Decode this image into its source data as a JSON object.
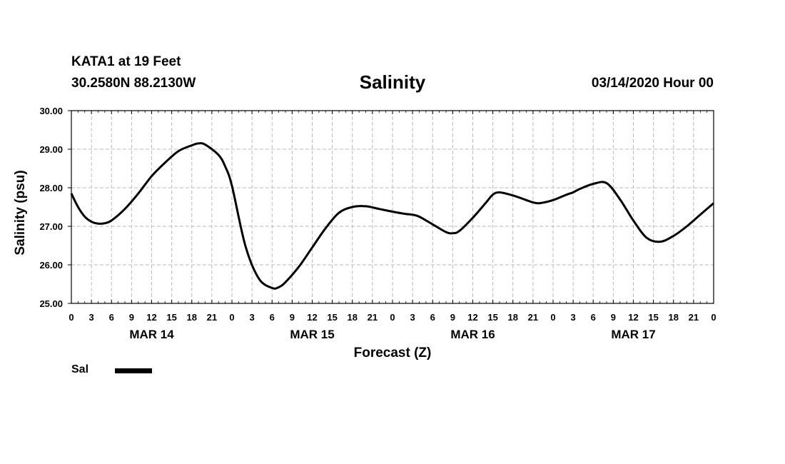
{
  "header": {
    "station": "KATA1 at 19 Feet",
    "coords": "30.2580N 88.2130W",
    "title": "Salinity",
    "timestamp": "03/14/2020 Hour 00"
  },
  "legend": {
    "label": "Sal"
  },
  "chart_data": {
    "type": "line",
    "title": "Salinity",
    "xlabel": "Forecast (Z)",
    "ylabel": "Salinity (psu)",
    "ylim": [
      25.0,
      30.0
    ],
    "xlim": [
      0,
      96
    ],
    "grid": true,
    "y_ticks": [
      25.0,
      26.0,
      27.0,
      28.0,
      29.0,
      30.0
    ],
    "y_tick_labels": [
      "25.00",
      "26.00",
      "27.00",
      "28.00",
      "29.00",
      "30.00"
    ],
    "x_ticks": [
      0,
      3,
      6,
      9,
      12,
      15,
      18,
      21,
      24,
      27,
      30,
      33,
      36,
      39,
      42,
      45,
      48,
      51,
      54,
      57,
      60,
      63,
      66,
      69,
      72,
      75,
      78,
      81,
      84,
      87,
      90,
      93,
      96
    ],
    "x_tick_labels": [
      "0",
      "3",
      "6",
      "9",
      "12",
      "15",
      "18",
      "21",
      "0",
      "3",
      "6",
      "9",
      "12",
      "15",
      "18",
      "21",
      "0",
      "3",
      "6",
      "9",
      "12",
      "15",
      "18",
      "21",
      "0",
      "3",
      "6",
      "9",
      "12",
      "15",
      "18",
      "21",
      "0"
    ],
    "day_labels": [
      {
        "label": "MAR 14",
        "hour": 12
      },
      {
        "label": "MAR 15",
        "hour": 36
      },
      {
        "label": "MAR 16",
        "hour": 60
      },
      {
        "label": "MAR 17",
        "hour": 84
      }
    ],
    "series": [
      {
        "name": "Sal",
        "color": "#000000",
        "x": [
          0,
          1,
          2,
          3,
          4,
          5,
          6,
          8,
          10,
          12,
          14,
          16,
          18,
          19,
          20,
          22,
          23,
          24,
          26,
          28,
          30,
          31,
          32,
          34,
          36,
          38,
          40,
          42,
          44,
          46,
          48,
          50,
          51,
          52,
          54,
          56,
          57,
          58,
          60,
          62,
          63,
          64,
          66,
          68,
          69,
          70,
          72,
          74,
          75,
          76,
          78,
          80,
          82,
          84,
          86,
          88,
          90,
          92,
          94,
          96
        ],
        "y": [
          27.85,
          27.5,
          27.25,
          27.12,
          27.07,
          27.08,
          27.15,
          27.45,
          27.85,
          28.3,
          28.65,
          28.95,
          29.1,
          29.15,
          29.12,
          28.85,
          28.55,
          28.05,
          26.5,
          25.65,
          25.4,
          25.42,
          25.55,
          25.95,
          26.45,
          26.95,
          27.35,
          27.5,
          27.52,
          27.45,
          27.38,
          27.32,
          27.3,
          27.25,
          27.05,
          26.85,
          26.82,
          26.88,
          27.22,
          27.62,
          27.82,
          27.88,
          27.8,
          27.68,
          27.62,
          27.6,
          27.68,
          27.82,
          27.88,
          27.97,
          28.1,
          28.12,
          27.7,
          27.15,
          26.7,
          26.6,
          26.75,
          27.0,
          27.3,
          27.6
        ]
      }
    ]
  }
}
